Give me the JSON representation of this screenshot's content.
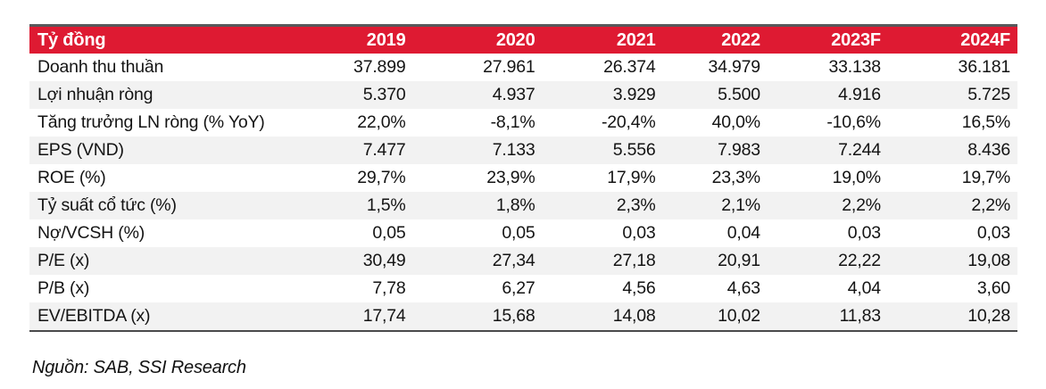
{
  "table": {
    "header": {
      "label": "Tỷ đồng",
      "columns": [
        "2019",
        "2020",
        "2021",
        "2022",
        "2023F",
        "2024F"
      ]
    },
    "rows": [
      {
        "label": "Doanh thu thuần",
        "values": [
          "37.899",
          "27.961",
          "26.374",
          "34.979",
          "33.138",
          "36.181"
        ]
      },
      {
        "label": "Lợi nhuận ròng",
        "values": [
          "5.370",
          "4.937",
          "3.929",
          "5.500",
          "4.916",
          "5.725"
        ]
      },
      {
        "label": "Tăng trưởng LN ròng (% YoY)",
        "values": [
          "22,0%",
          "-8,1%",
          "-20,4%",
          "40,0%",
          "-10,6%",
          "16,5%"
        ]
      },
      {
        "label": "EPS (VND)",
        "values": [
          "7.477",
          "7.133",
          "5.556",
          "7.983",
          "7.244",
          "8.436"
        ]
      },
      {
        "label": "ROE (%)",
        "values": [
          "29,7%",
          "23,9%",
          "17,9%",
          "23,3%",
          "19,0%",
          "19,7%"
        ]
      },
      {
        "label": "Tỷ suất cổ tức (%)",
        "values": [
          "1,5%",
          "1,8%",
          "2,3%",
          "2,1%",
          "2,2%",
          "2,2%"
        ]
      },
      {
        "label": "Nợ/VCSH (%)",
        "values": [
          "0,05",
          "0,05",
          "0,03",
          "0,04",
          "0,03",
          "0,03"
        ]
      },
      {
        "label": "P/E (x)",
        "values": [
          "30,49",
          "27,34",
          "27,18",
          "20,91",
          "22,22",
          "19,08"
        ]
      },
      {
        "label": "P/B (x)",
        "values": [
          "7,78",
          "6,27",
          "4,56",
          "4,63",
          "4,04",
          "3,60"
        ]
      },
      {
        "label": "EV/EBITDA (x)",
        "values": [
          "17,74",
          "15,68",
          "14,08",
          "10,02",
          "11,83",
          "10,28"
        ]
      }
    ],
    "source_note": "Nguồn: SAB, SSI Research"
  },
  "colors": {
    "header_bg": "#DE1A32",
    "header_text": "#FFFFFF",
    "stripe_bg": "#F2F2F2",
    "top_border": "#58595B",
    "bottom_border": "#4A4A4B",
    "body_text": "#141414"
  }
}
